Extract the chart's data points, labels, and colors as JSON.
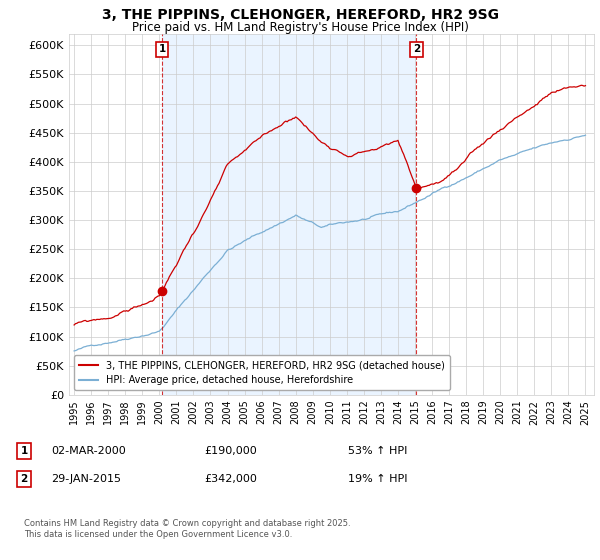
{
  "title": "3, THE PIPPINS, CLEHONGER, HEREFORD, HR2 9SG",
  "subtitle": "Price paid vs. HM Land Registry's House Price Index (HPI)",
  "legend_entry1": "3, THE PIPPINS, CLEHONGER, HEREFORD, HR2 9SG (detached house)",
  "legend_entry2": "HPI: Average price, detached house, Herefordshire",
  "annotation1_label": "1",
  "annotation1_date": "02-MAR-2000",
  "annotation1_price": "£190,000",
  "annotation1_hpi": "53% ↑ HPI",
  "annotation2_label": "2",
  "annotation2_date": "29-JAN-2015",
  "annotation2_price": "£342,000",
  "annotation2_hpi": "19% ↑ HPI",
  "copyright": "Contains HM Land Registry data © Crown copyright and database right 2025.\nThis data is licensed under the Open Government Licence v3.0.",
  "hpi_color": "#7bafd4",
  "hpi_fill_color": "#ddeeff",
  "price_color": "#cc0000",
  "annotation_color": "#cc0000",
  "background_color": "#ffffff",
  "grid_color": "#cccccc",
  "ylim": [
    0,
    620000
  ],
  "yticks": [
    0,
    50000,
    100000,
    150000,
    200000,
    250000,
    300000,
    350000,
    400000,
    450000,
    500000,
    550000,
    600000
  ],
  "sale1_year": 2000.17,
  "sale1_value": 190000,
  "sale2_year": 2015.08,
  "sale2_value": 342000,
  "vline1_year": 2000.17,
  "vline2_year": 2015.08,
  "xlim_left": 1994.7,
  "xlim_right": 2025.5
}
